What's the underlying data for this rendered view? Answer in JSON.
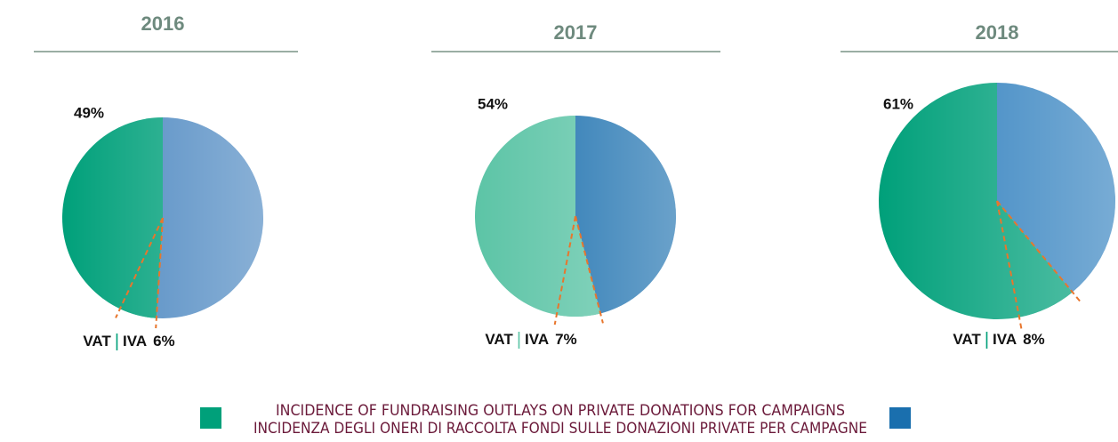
{
  "chart_data": [
    {
      "type": "pie",
      "title": "2016",
      "values": [
        49,
        51
      ],
      "value_labels": [
        "49%",
        null
      ],
      "colors": [
        "#00a07a",
        "#4a86c0"
      ],
      "vat": {
        "label": "VAT",
        "separator": "|",
        "label_it": "IVA",
        "value": 6,
        "value_label": "6%"
      }
    },
    {
      "type": "pie",
      "title": "2017",
      "values": [
        54,
        46
      ],
      "value_labels": [
        "54%",
        null
      ],
      "colors": [
        "#5cc4a6",
        "#1a6fae"
      ],
      "vat": {
        "label": "VAT",
        "separator": "|",
        "label_it": "IVA",
        "value": 7,
        "value_label": "7%"
      }
    },
    {
      "type": "pie",
      "title": "2018",
      "values": [
        61,
        39
      ],
      "value_labels": [
        "61%",
        null
      ],
      "colors": [
        "#00a07a",
        "#2f7fbe"
      ],
      "vat": {
        "label": "VAT",
        "separator": "|",
        "label_it": "IVA",
        "value": 8,
        "value_label": "8%"
      }
    }
  ],
  "legend": {
    "lines": [
      "INCIDENCE OF FUNDRAISING OUTLAYS ON PRIVATE DONATIONS FOR CAMPAIGNS",
      "INCIDENZA DEGLI ONERI DI RACCOLTA FONDI SULLE DONAZIONI PRIVATE PER CAMPAGNE"
    ],
    "colors": [
      "#00a07a",
      "#1a6fae"
    ]
  }
}
